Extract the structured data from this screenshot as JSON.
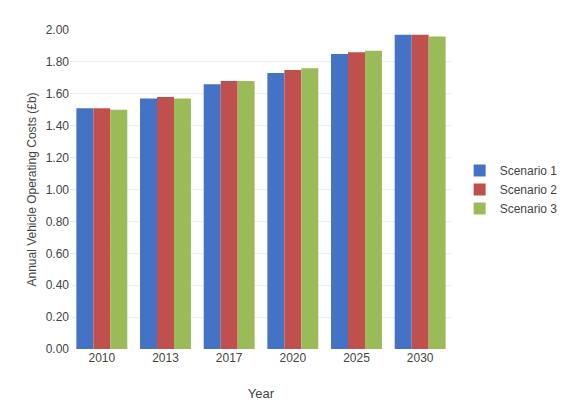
{
  "chart_data": {
    "type": "bar",
    "xlabel": "Year",
    "ylabel": "Annual Vehicle Operating Costs (£b)",
    "categories": [
      "2010",
      "2013",
      "2017",
      "2020",
      "2025",
      "2030"
    ],
    "series": [
      {
        "name": "Scenario 1",
        "color": "#4472C4",
        "values": [
          1.51,
          1.57,
          1.66,
          1.73,
          1.85,
          1.97
        ]
      },
      {
        "name": "Scenario 2",
        "color": "#C0504D",
        "values": [
          1.51,
          1.58,
          1.68,
          1.75,
          1.86,
          1.97
        ]
      },
      {
        "name": "Scenario 3",
        "color": "#9BBB59",
        "values": [
          1.5,
          1.57,
          1.68,
          1.76,
          1.87,
          1.96
        ]
      }
    ],
    "ylim": [
      0.0,
      2.0
    ],
    "yticks": [
      {
        "value": 0.0,
        "label": "0.00"
      },
      {
        "value": 0.2,
        "label": "0.20"
      },
      {
        "value": 0.4,
        "label": "0.40"
      },
      {
        "value": 0.6,
        "label": "0.60"
      },
      {
        "value": 0.8,
        "label": "0.80"
      },
      {
        "value": 1.0,
        "label": "1.00"
      },
      {
        "value": 1.2,
        "label": "1.20"
      },
      {
        "value": 1.4,
        "label": "1.40"
      },
      {
        "value": 1.6,
        "label": "1.60"
      },
      {
        "value": 1.8,
        "label": "1.80"
      },
      {
        "value": 2.0,
        "label": "2.00"
      }
    ],
    "grid": true,
    "legend": "right"
  }
}
